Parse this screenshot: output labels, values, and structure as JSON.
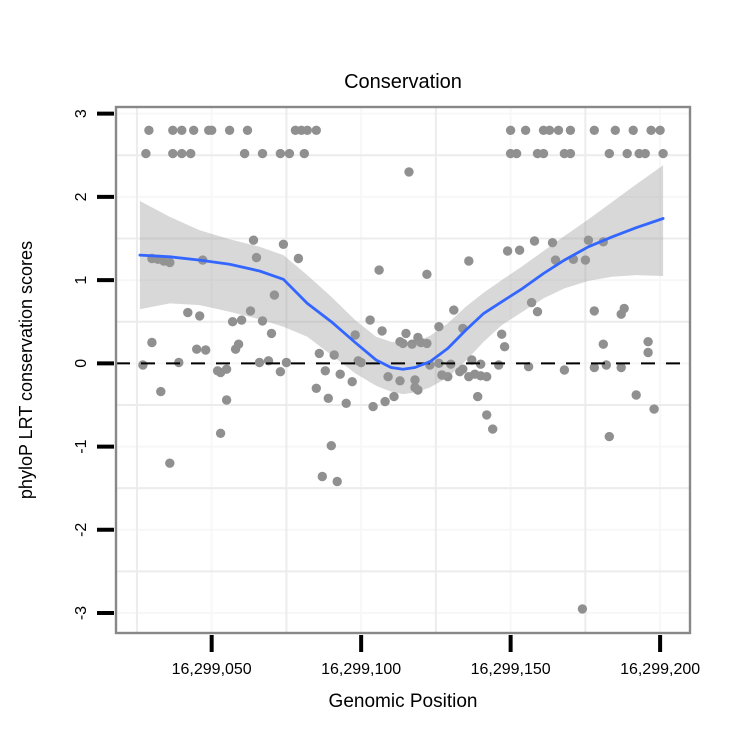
{
  "title": "Conservation",
  "x_axis": {
    "label": "Genomic Position",
    "ticks": [
      {
        "pos": 16299050,
        "label": "16,299,050"
      },
      {
        "pos": 16299100,
        "label": "16,299,100"
      },
      {
        "pos": 16299150,
        "label": "16,299,150"
      },
      {
        "pos": 16299200,
        "label": "16,299,200"
      }
    ]
  },
  "y_axis": {
    "label": "phyloP LRT conservation scores",
    "ticks": [
      {
        "val": 3,
        "label": "3"
      },
      {
        "val": 2,
        "label": "2"
      },
      {
        "val": 1,
        "label": "1"
      },
      {
        "val": 0,
        "label": "0"
      },
      {
        "val": -1,
        "label": "-1"
      },
      {
        "val": -2,
        "label": "-2"
      },
      {
        "val": -3,
        "label": "-3"
      }
    ]
  },
  "colors": {
    "point": "#909090",
    "band_gray": "#999999",
    "band_opacity": 0.38,
    "smooth_line": "#3366FF",
    "reference_line": "#000000",
    "panel_border": "#888888",
    "grid_minor": "#ececec",
    "grid_major": "#f7f7f7",
    "text": "#000000",
    "tick": "#000000"
  },
  "chart_data": {
    "type": "scatter",
    "title": "Conservation",
    "xlabel": "Genomic Position",
    "ylabel": "phyloP LRT conservation scores",
    "x_base": 16299000,
    "xlim_off": [
      18,
      210
    ],
    "ylim": [
      -3.24,
      3.08
    ],
    "reference_line_y": 0,
    "grid": {
      "x_minor_off": [
        25,
        75,
        125,
        175
      ],
      "x_major_off": [
        50,
        100,
        150,
        200
      ],
      "y_minor": [
        -2.5,
        -1.5,
        -0.5,
        0.5,
        1.5,
        2.5
      ],
      "y_major": [
        -3,
        -2,
        -1,
        0,
        1,
        2,
        3
      ]
    },
    "points_off": [
      [
        29,
        2.8
      ],
      [
        37,
        2.8
      ],
      [
        40,
        2.8
      ],
      [
        44,
        2.8
      ],
      [
        49,
        2.8
      ],
      [
        50,
        2.8
      ],
      [
        56,
        2.8
      ],
      [
        62,
        2.8
      ],
      [
        78,
        2.8
      ],
      [
        80,
        2.8
      ],
      [
        82,
        2.8
      ],
      [
        85,
        2.8
      ],
      [
        150,
        2.8
      ],
      [
        155,
        2.8
      ],
      [
        161,
        2.8
      ],
      [
        163,
        2.8
      ],
      [
        166,
        2.8
      ],
      [
        170,
        2.8
      ],
      [
        178,
        2.8
      ],
      [
        185,
        2.8
      ],
      [
        191,
        2.8
      ],
      [
        197,
        2.8
      ],
      [
        200,
        2.8
      ],
      [
        28,
        2.52
      ],
      [
        37,
        2.52
      ],
      [
        40,
        2.52
      ],
      [
        43,
        2.52
      ],
      [
        61,
        2.52
      ],
      [
        67,
        2.52
      ],
      [
        73,
        2.52
      ],
      [
        76,
        2.52
      ],
      [
        81,
        2.52
      ],
      [
        150,
        2.52
      ],
      [
        152,
        2.52
      ],
      [
        159,
        2.52
      ],
      [
        161,
        2.52
      ],
      [
        168,
        2.52
      ],
      [
        170,
        2.52
      ],
      [
        183,
        2.52
      ],
      [
        189,
        2.52
      ],
      [
        193,
        2.52
      ],
      [
        195,
        2.52
      ],
      [
        201,
        2.52
      ],
      [
        116,
        2.3
      ],
      [
        30,
        1.26
      ],
      [
        32,
        1.25
      ],
      [
        34,
        1.23
      ],
      [
        36,
        1.21
      ],
      [
        47,
        1.24
      ],
      [
        64,
        1.48
      ],
      [
        65,
        1.27
      ],
      [
        74,
        1.43
      ],
      [
        79,
        1.26
      ],
      [
        106,
        1.12
      ],
      [
        122,
        1.07
      ],
      [
        136,
        1.23
      ],
      [
        149,
        1.35
      ],
      [
        153,
        1.36
      ],
      [
        158,
        1.47
      ],
      [
        164,
        1.45
      ],
      [
        165,
        1.24
      ],
      [
        171,
        1.25
      ],
      [
        175,
        1.24
      ],
      [
        176,
        1.48
      ],
      [
        181,
        1.46
      ],
      [
        42,
        0.61
      ],
      [
        46,
        0.57
      ],
      [
        57,
        0.5
      ],
      [
        60,
        0.52
      ],
      [
        63,
        0.63
      ],
      [
        67,
        0.51
      ],
      [
        70,
        0.36
      ],
      [
        71,
        0.82
      ],
      [
        98,
        0.34
      ],
      [
        103,
        0.52
      ],
      [
        107,
        0.39
      ],
      [
        113,
        0.26
      ],
      [
        114,
        0.24
      ],
      [
        115,
        0.36
      ],
      [
        117,
        0.23
      ],
      [
        119,
        0.31
      ],
      [
        120,
        0.25
      ],
      [
        122,
        0.24
      ],
      [
        126,
        0.44
      ],
      [
        131,
        0.64
      ],
      [
        134,
        0.42
      ],
      [
        147,
        0.35
      ],
      [
        148,
        0.2
      ],
      [
        157,
        0.73
      ],
      [
        159,
        0.62
      ],
      [
        178,
        0.63
      ],
      [
        181,
        0.23
      ],
      [
        187,
        0.59
      ],
      [
        188,
        0.66
      ],
      [
        196,
        0.26
      ],
      [
        196,
        0.13
      ],
      [
        27,
        -0.02
      ],
      [
        30,
        0.25
      ],
      [
        39,
        0.01
      ],
      [
        45,
        0.17
      ],
      [
        48,
        0.16
      ],
      [
        52,
        -0.09
      ],
      [
        53,
        -0.11
      ],
      [
        55,
        -0.07
      ],
      [
        58,
        0.17
      ],
      [
        59,
        0.23
      ],
      [
        66,
        0.01
      ],
      [
        69,
        0.03
      ],
      [
        73,
        -0.1
      ],
      [
        75,
        0.01
      ],
      [
        86,
        0.12
      ],
      [
        88,
        -0.09
      ],
      [
        91,
        0.1
      ],
      [
        93,
        -0.13
      ],
      [
        97,
        -0.22
      ],
      [
        99,
        0.03
      ],
      [
        100,
        0.01
      ],
      [
        109,
        -0.16
      ],
      [
        113,
        -0.21
      ],
      [
        118,
        -0.2
      ],
      [
        123,
        -0.02
      ],
      [
        126,
        0.0
      ],
      [
        127,
        -0.14
      ],
      [
        129,
        -0.16
      ],
      [
        130,
        -0.01
      ],
      [
        133,
        -0.1
      ],
      [
        134,
        -0.07
      ],
      [
        136,
        -0.16
      ],
      [
        137,
        0.04
      ],
      [
        138,
        -0.13
      ],
      [
        140,
        -0.15
      ],
      [
        140,
        -0.01
      ],
      [
        142,
        -0.16
      ],
      [
        146,
        -0.02
      ],
      [
        156,
        -0.04
      ],
      [
        168,
        -0.08
      ],
      [
        178,
        -0.05
      ],
      [
        182,
        -0.02
      ],
      [
        187,
        -0.05
      ],
      [
        33,
        -0.34
      ],
      [
        55,
        -0.44
      ],
      [
        85,
        -0.3
      ],
      [
        89,
        -0.42
      ],
      [
        95,
        -0.48
      ],
      [
        104,
        -0.52
      ],
      [
        108,
        -0.46
      ],
      [
        111,
        -0.4
      ],
      [
        118,
        -0.29
      ],
      [
        119,
        -0.32
      ],
      [
        139,
        -0.4
      ],
      [
        192,
        -0.38
      ],
      [
        198,
        -0.55
      ],
      [
        36,
        -1.2
      ],
      [
        53,
        -0.84
      ],
      [
        87,
        -1.36
      ],
      [
        90,
        -0.99
      ],
      [
        92,
        -1.42
      ],
      [
        142,
        -0.62
      ],
      [
        144,
        -0.79
      ],
      [
        174,
        -2.95
      ],
      [
        183,
        -0.88
      ]
    ],
    "smooth": {
      "pos_off": [
        26,
        36,
        46,
        56,
        66,
        74,
        82,
        90,
        98,
        105,
        110,
        114,
        118,
        123,
        129,
        135,
        141,
        147,
        154,
        161,
        168,
        176,
        184,
        192,
        201
      ],
      "fit": [
        1.3,
        1.28,
        1.24,
        1.19,
        1.11,
        1.01,
        0.72,
        0.5,
        0.25,
        0.04,
        -0.05,
        -0.07,
        -0.05,
        0.02,
        0.18,
        0.4,
        0.6,
        0.74,
        0.9,
        1.08,
        1.24,
        1.4,
        1.52,
        1.63,
        1.74
      ],
      "upper": [
        1.95,
        1.76,
        1.6,
        1.49,
        1.4,
        1.3,
        1.06,
        0.8,
        0.52,
        0.32,
        0.26,
        0.24,
        0.26,
        0.33,
        0.48,
        0.68,
        0.85,
        1.0,
        1.17,
        1.35,
        1.53,
        1.73,
        1.94,
        2.15,
        2.38
      ],
      "lower": [
        0.65,
        0.72,
        0.7,
        0.62,
        0.53,
        0.44,
        0.32,
        0.1,
        -0.12,
        -0.27,
        -0.34,
        -0.37,
        -0.35,
        -0.29,
        -0.17,
        0.03,
        0.26,
        0.46,
        0.62,
        0.78,
        0.9,
        0.99,
        1.04,
        1.06,
        1.05
      ]
    },
    "legend": null,
    "grid_on": true
  }
}
